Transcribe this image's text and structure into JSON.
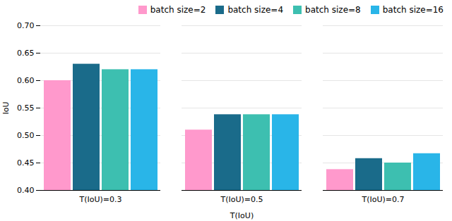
{
  "chart_data": {
    "type": "bar",
    "categories": [
      "T(IoU)=0.3",
      "T(IoU)=0.5",
      "T(IoU)=0.7"
    ],
    "series": [
      {
        "name": "batch size=2",
        "color": "#FF99CC",
        "values": [
          0.6,
          0.51,
          0.438
        ]
      },
      {
        "name": "batch size=4",
        "color": "#1A6B8A",
        "values": [
          0.63,
          0.538,
          0.458
        ]
      },
      {
        "name": "batch size=8",
        "color": "#3DBFB0",
        "values": [
          0.62,
          0.538,
          0.45
        ]
      },
      {
        "name": "batch size=16",
        "color": "#29B5E8",
        "values": [
          0.62,
          0.538,
          0.467
        ]
      }
    ],
    "xlabel": "T(IoU)",
    "ylabel": "IoU",
    "ylim": [
      0.4,
      0.7
    ],
    "yticks": [
      {
        "value": 0.4,
        "label": "0.40"
      },
      0.45,
      {
        "value": 0.5,
        "label": "0.50"
      },
      0.55,
      {
        "value": 0.6,
        "label": "0.60"
      },
      0.65,
      {
        "value": 0.7,
        "label": "0.70"
      }
    ],
    "grid": true,
    "legend": "upper right"
  }
}
